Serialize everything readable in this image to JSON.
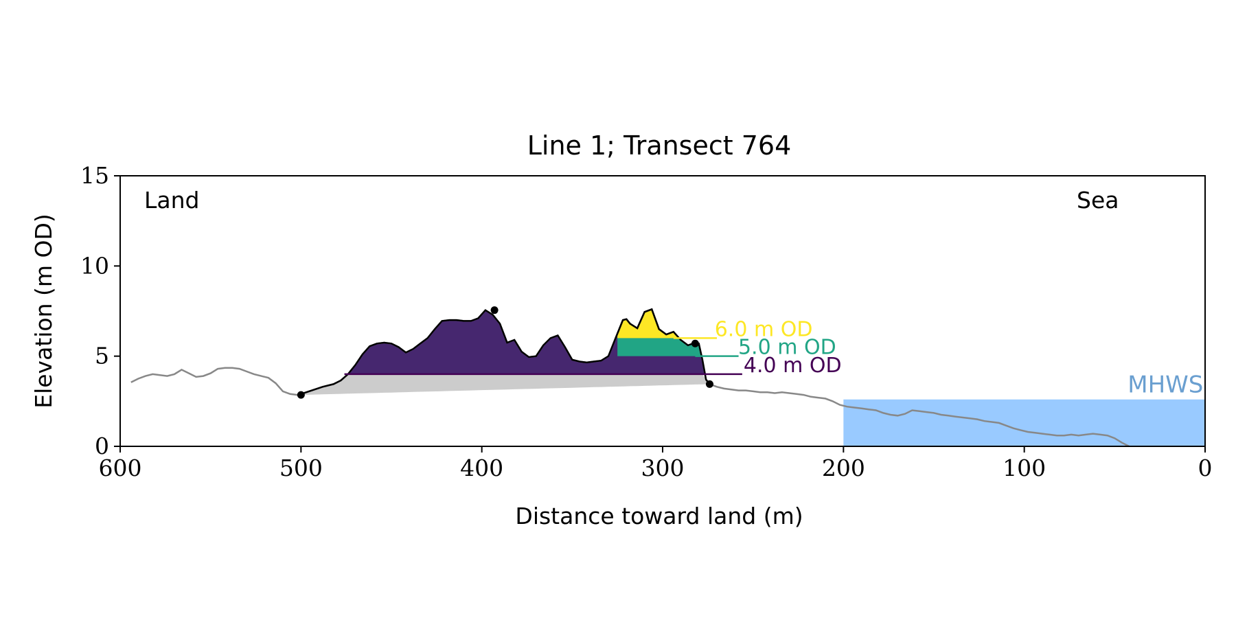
{
  "chart_data": {
    "type": "area",
    "title": "Line 1; Transect 764",
    "xlabel": "Distance toward land (m)",
    "ylabel": "Elevation (m OD)",
    "xlim": [
      600,
      0
    ],
    "ylim": [
      0,
      15
    ],
    "x_ticks": [
      600,
      500,
      400,
      300,
      200,
      100,
      0
    ],
    "y_ticks": [
      0,
      5,
      10,
      15
    ],
    "grid": false,
    "corner_labels": {
      "left": "Land",
      "right": "Sea"
    },
    "mhws": {
      "label": "MHWS",
      "elevation": 2.6,
      "x_from": 200,
      "x_to": 0,
      "color": "#99caff",
      "label_color": "#6a9fd0"
    },
    "profile": {
      "x": [
        594,
        590,
        586,
        582,
        578,
        574,
        570,
        566,
        562,
        558,
        554,
        550,
        546,
        542,
        538,
        534,
        530,
        526,
        522,
        518,
        514,
        510,
        506,
        502,
        500,
        494,
        488,
        482,
        478,
        474,
        470,
        466,
        462,
        458,
        454,
        450,
        446,
        442,
        438,
        434,
        430,
        426,
        422,
        418,
        414,
        410,
        406,
        402,
        398,
        394,
        390,
        386,
        382,
        378,
        374,
        370,
        366,
        362,
        358,
        354,
        350,
        346,
        342,
        338,
        334,
        330,
        326,
        322,
        320,
        318,
        314,
        310,
        306,
        302,
        298,
        294,
        290,
        286,
        282,
        280,
        278,
        276,
        274,
        270,
        266,
        262,
        258,
        254,
        250,
        246,
        242,
        238,
        234,
        230,
        226,
        222,
        218,
        214,
        210,
        206,
        202,
        198,
        194,
        190,
        186,
        182,
        178,
        174,
        170,
        166,
        162,
        158,
        154,
        150,
        146,
        142,
        138,
        134,
        130,
        126,
        122,
        118,
        114,
        110,
        106,
        102,
        98,
        94,
        90,
        86,
        82,
        78,
        74,
        70,
        66,
        62,
        58,
        54,
        50,
        46,
        42
      ],
      "y": [
        3.55,
        3.75,
        3.9,
        4.0,
        3.95,
        3.9,
        4.0,
        4.25,
        4.05,
        3.85,
        3.9,
        4.05,
        4.3,
        4.35,
        4.35,
        4.3,
        4.15,
        4.0,
        3.9,
        3.8,
        3.5,
        3.05,
        2.9,
        2.85,
        2.9,
        3.1,
        3.3,
        3.45,
        3.65,
        4.0,
        4.5,
        5.1,
        5.55,
        5.7,
        5.75,
        5.7,
        5.5,
        5.2,
        5.4,
        5.7,
        6.0,
        6.5,
        6.95,
        7.0,
        7.0,
        6.95,
        6.95,
        7.1,
        7.55,
        7.3,
        6.8,
        5.75,
        5.9,
        5.25,
        4.95,
        5.0,
        5.6,
        6.0,
        6.15,
        5.5,
        4.8,
        4.7,
        4.65,
        4.7,
        4.75,
        5.0,
        6.0,
        7.0,
        7.05,
        6.8,
        6.55,
        7.45,
        7.6,
        6.5,
        6.2,
        6.35,
        5.9,
        5.6,
        5.75,
        5.7,
        4.8,
        3.7,
        3.45,
        3.3,
        3.2,
        3.15,
        3.1,
        3.1,
        3.05,
        3.0,
        3.0,
        2.95,
        3.0,
        2.95,
        2.9,
        2.85,
        2.75,
        2.7,
        2.65,
        2.5,
        2.3,
        2.2,
        2.15,
        2.1,
        2.05,
        2.0,
        1.85,
        1.75,
        1.7,
        1.8,
        2.0,
        1.95,
        1.9,
        1.85,
        1.75,
        1.7,
        1.65,
        1.6,
        1.55,
        1.5,
        1.4,
        1.35,
        1.3,
        1.15,
        1.0,
        0.9,
        0.8,
        0.75,
        0.7,
        0.65,
        0.6,
        0.6,
        0.65,
        0.6,
        0.65,
        0.7,
        0.65,
        0.6,
        0.45,
        0.2,
        0.0
      ],
      "color": "#888888"
    },
    "dune": {
      "toe": {
        "x": 500,
        "y": 2.85
      },
      "crest": {
        "x": 393,
        "y": 7.55
      },
      "heel_crest": {
        "x": 282,
        "y": 5.7
      },
      "heel": {
        "x": 274,
        "y": 3.45
      },
      "edge_color": "#000000",
      "below_fill_color": "#cccccc"
    },
    "levels": [
      {
        "label": "6.0 m OD",
        "elevation": 6.0,
        "color": "#fde725"
      },
      {
        "label": "5.0 m OD",
        "elevation": 5.0,
        "color": "#21a585"
      },
      {
        "label": "4.0 m OD",
        "elevation": 4.0,
        "color": "#440154"
      }
    ],
    "level_fill_colors": {
      "above_6": "#fde725",
      "from_5_to_6": "#21a585",
      "from_4_to_5": "#46276f"
    }
  }
}
